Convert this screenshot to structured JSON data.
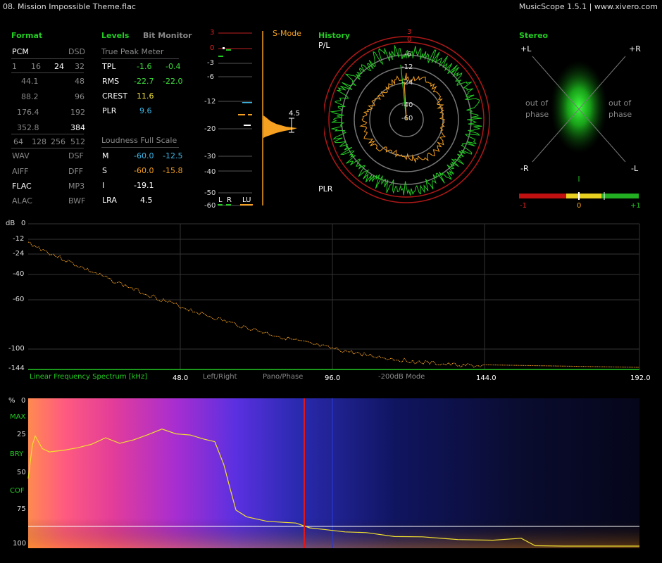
{
  "window": {
    "title": "08. Mission Impossible Theme.flac",
    "app": "MusicScope 1.5.1 | www.xivero.com"
  },
  "format": {
    "header": "Format",
    "pcm": "PCM",
    "dsd": "DSD",
    "bits": [
      "1",
      "16",
      "24",
      "32"
    ],
    "rates": [
      [
        "44.1",
        "48"
      ],
      [
        "88.2",
        "96"
      ],
      [
        "176.4",
        "192"
      ],
      [
        "352.8",
        "384"
      ]
    ],
    "dsd_rates": [
      "64",
      "128",
      "256",
      "512"
    ],
    "types": [
      [
        "WAV",
        "DSF"
      ],
      [
        "AIFF",
        "DFF"
      ],
      [
        "FLAC",
        "MP3"
      ],
      [
        "ALAC",
        "BWF"
      ]
    ]
  },
  "levels": {
    "header": "Levels",
    "bit_monitor": "Bit Monitor",
    "tpm_title": "True Peak Meter",
    "tpl": {
      "label": "TPL",
      "l": "-1.6",
      "r": "-0.4"
    },
    "rms": {
      "label": "RMS",
      "l": "-22.7",
      "r": "-22.0"
    },
    "crest": {
      "label": "CREST",
      "v": "11.6"
    },
    "plr": {
      "label": "PLR",
      "v": "9.6"
    },
    "lfs_title": "Loudness Full Scale",
    "m": {
      "label": "M",
      "a": "-60.0",
      "b": "-12.5"
    },
    "s": {
      "label": "S",
      "a": "-60.0",
      "b": "-15.8"
    },
    "i": {
      "label": "I",
      "v": "-19.1"
    },
    "lra": {
      "label": "LRA",
      "v": "4.5"
    }
  },
  "meter": {
    "mode": "S-Mode",
    "scale": [
      "3",
      "0",
      "-3",
      "-6",
      "-12",
      "-20",
      "-30",
      "-40",
      "-50",
      "-60"
    ],
    "channels": [
      "L",
      "R",
      "LU"
    ],
    "lra_value": "4.5"
  },
  "history": {
    "header": "History",
    "pl": "P/L",
    "plr": "PLR",
    "rings": [
      "3",
      "0",
      "-6",
      "-12",
      "-24",
      "-40",
      "-60"
    ]
  },
  "stereo": {
    "header": "Stereo",
    "tl": "+L",
    "tr": "+R",
    "bl": "-R",
    "br": "-L",
    "oop_left": "out of\nphase",
    "oop_right": "out of\nphase",
    "corr_labels": [
      "-1",
      "0",
      "+1"
    ]
  },
  "spectrum": {
    "unit": "dB",
    "db_ticks": [
      "0",
      "-12",
      "-24",
      "-40",
      "-60",
      "-100",
      "-144"
    ],
    "label": "Linear Frequency Spectrum [kHz]",
    "x_ticks": [
      "48.0",
      "96.0",
      "144.0",
      "192.0"
    ],
    "left_right": "Left/Right",
    "pano": "Pano/Phase",
    "mode": "-200dB Mode"
  },
  "spectrogram": {
    "unit": "%",
    "ticks": [
      "0",
      "25",
      "50",
      "75",
      "100"
    ],
    "labels": [
      "MAX",
      "BRY",
      "COF"
    ]
  }
}
